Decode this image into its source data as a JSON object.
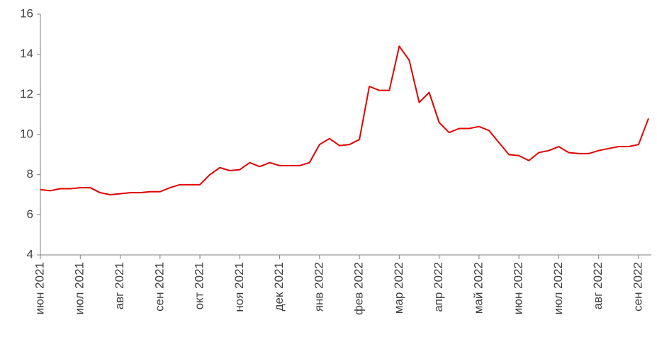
{
  "chart_data": {
    "type": "line",
    "categories": [
      "июн 2021",
      null,
      null,
      null,
      "июл 2021",
      null,
      null,
      null,
      "авг 2021",
      null,
      null,
      null,
      "сен 2021",
      null,
      null,
      null,
      "окт 2021",
      null,
      null,
      null,
      "ноя 2021",
      null,
      null,
      null,
      "дек 2021",
      null,
      null,
      null,
      "янв 2022",
      null,
      null,
      null,
      "фев 2022",
      null,
      null,
      null,
      "мар 2022",
      null,
      null,
      null,
      "апр 2022",
      null,
      null,
      null,
      "май 2022",
      null,
      null,
      null,
      "июн 2022",
      null,
      null,
      null,
      "июл 2022",
      null,
      null,
      null,
      "авг 2022",
      null,
      null,
      null,
      "сен 2022",
      null
    ],
    "series": [
      {
        "color": "#e00000",
        "values": [
          7.25,
          7.2,
          7.3,
          7.3,
          7.35,
          7.35,
          7.1,
          7.0,
          7.05,
          7.1,
          7.1,
          7.15,
          7.15,
          7.35,
          7.5,
          7.5,
          7.5,
          8.0,
          8.35,
          8.2,
          8.25,
          8.6,
          8.4,
          8.6,
          8.45,
          8.45,
          8.45,
          8.6,
          9.5,
          9.8,
          9.45,
          9.5,
          9.75,
          12.4,
          12.2,
          12.2,
          14.4,
          13.7,
          11.6,
          12.1,
          10.6,
          10.1,
          10.3,
          10.3,
          10.4,
          10.2,
          9.6,
          9.0,
          8.95,
          8.7,
          9.1,
          9.2,
          9.4,
          9.1,
          9.05,
          9.05,
          9.2,
          9.3,
          9.4,
          9.4,
          9.5,
          10.8
        ]
      }
    ],
    "ylim": [
      4,
      16
    ],
    "yticks": [
      4,
      6,
      8,
      10,
      12,
      14,
      16
    ],
    "grid": false
  }
}
